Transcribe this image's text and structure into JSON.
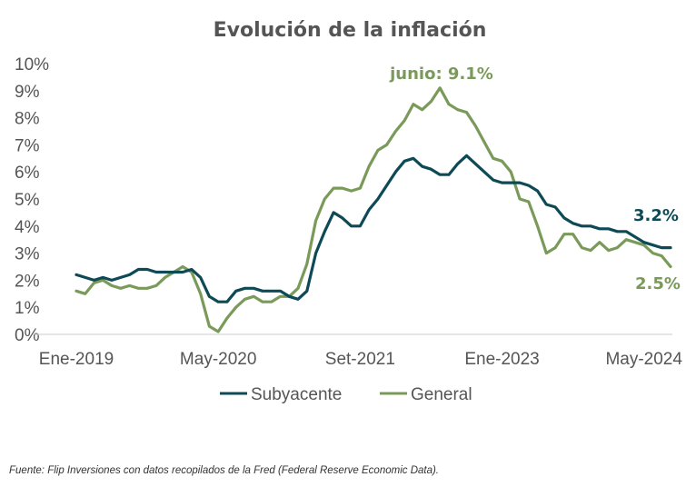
{
  "chart_data": {
    "type": "line",
    "title": "Evolución de la inflación",
    "xlabel": "",
    "ylabel": "",
    "x_tick_labels": [
      "Ene-2019",
      "May-2020",
      "Set-2021",
      "Ene-2023",
      "May-2024"
    ],
    "y_tick_labels": [
      "0%",
      "1%",
      "2%",
      "3%",
      "4%",
      "5%",
      "6%",
      "7%",
      "8%",
      "9%",
      "10%"
    ],
    "ylim": [
      0,
      10
    ],
    "grid": false,
    "legend_position": "bottom",
    "series": [
      {
        "name": "Subyacente",
        "color": "#0d4a55",
        "values": [
          2.2,
          2.1,
          2.0,
          2.1,
          2.0,
          2.1,
          2.2,
          2.4,
          2.4,
          2.3,
          2.3,
          2.3,
          2.3,
          2.4,
          2.1,
          1.4,
          1.2,
          1.2,
          1.6,
          1.7,
          1.7,
          1.6,
          1.6,
          1.6,
          1.4,
          1.3,
          1.6,
          3.0,
          3.8,
          4.5,
          4.3,
          4.0,
          4.0,
          4.6,
          5.0,
          5.5,
          6.0,
          6.4,
          6.5,
          6.2,
          6.1,
          5.9,
          5.9,
          6.3,
          6.6,
          6.3,
          6.0,
          5.7,
          5.6,
          5.6,
          5.6,
          5.5,
          5.3,
          4.8,
          4.7,
          4.3,
          4.1,
          4.0,
          4.0,
          3.9,
          3.9,
          3.8,
          3.8,
          3.6,
          3.4,
          3.3,
          3.2,
          3.2
        ]
      },
      {
        "name": "General",
        "color": "#7a9a5a",
        "values": [
          1.6,
          1.5,
          1.9,
          2.0,
          1.8,
          1.7,
          1.8,
          1.7,
          1.7,
          1.8,
          2.1,
          2.3,
          2.5,
          2.3,
          1.5,
          0.3,
          0.1,
          0.6,
          1.0,
          1.3,
          1.4,
          1.2,
          1.2,
          1.4,
          1.4,
          1.7,
          2.6,
          4.2,
          5.0,
          5.4,
          5.4,
          5.3,
          5.4,
          6.2,
          6.8,
          7.0,
          7.5,
          7.9,
          8.5,
          8.3,
          8.6,
          9.1,
          8.5,
          8.3,
          8.2,
          7.7,
          7.1,
          6.5,
          6.4,
          6.0,
          5.0,
          4.9,
          4.0,
          3.0,
          3.2,
          3.7,
          3.7,
          3.2,
          3.1,
          3.4,
          3.1,
          3.2,
          3.5,
          3.4,
          3.3,
          3.0,
          2.9,
          2.5
        ]
      }
    ],
    "annotations": [
      {
        "text": "junio: 9.1%",
        "series": "General"
      },
      {
        "text": "3.2%",
        "series": "Subyacente"
      },
      {
        "text": "2.5%",
        "series": "General"
      }
    ]
  },
  "source": "Fuente: Flip Inversiones con datos recopilados de la Fred (Federal Reserve Economic Data)."
}
